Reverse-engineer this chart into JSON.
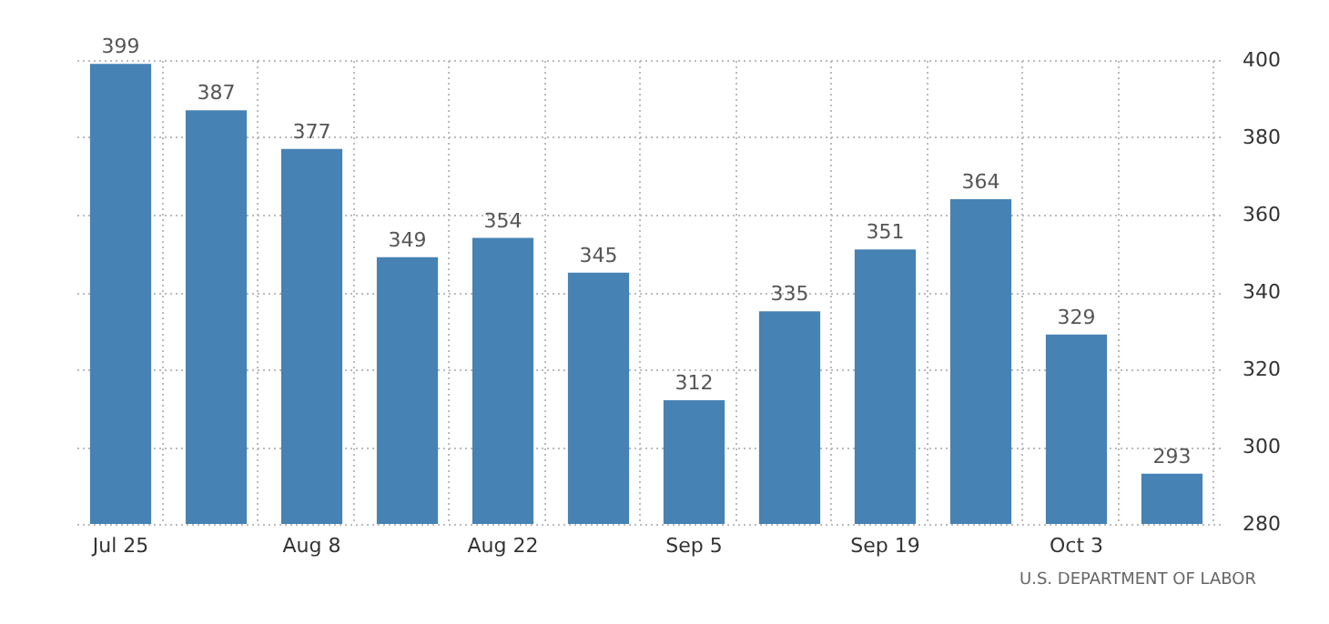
{
  "chart_data": {
    "type": "bar",
    "categories": [
      "Jul 25",
      null,
      "Aug 8",
      null,
      "Aug 22",
      null,
      "Sep 5",
      null,
      "Sep 19",
      null,
      "Oct 3",
      null
    ],
    "values": [
      399,
      387,
      377,
      349,
      354,
      345,
      312,
      335,
      351,
      364,
      329,
      293
    ],
    "color": "#4682b4",
    "ylim": [
      280,
      400
    ],
    "yticks": [
      280,
      300,
      320,
      340,
      360,
      380,
      400
    ],
    "grid": true,
    "data_labels": true,
    "annotations": [
      "U.S. DEPARTMENT OF LABOR"
    ]
  }
}
